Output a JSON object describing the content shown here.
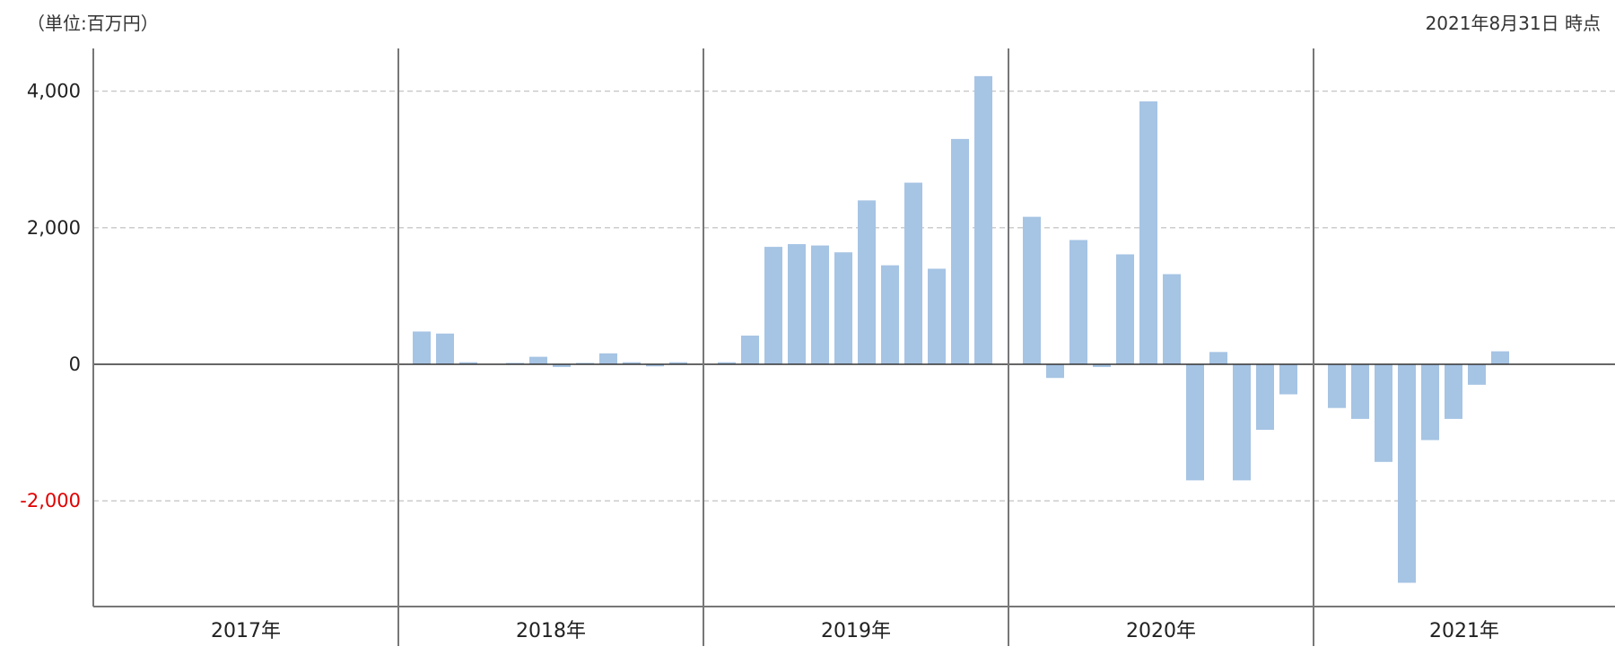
{
  "header": {
    "unit": "（単位:百万円）",
    "as_of": "2021年8月31日 時点"
  },
  "colors": {
    "bar": "#a6c4e4",
    "grid": "#c8c8c8",
    "axis": "#333333",
    "divider": "#777777",
    "negative_tick": "#e00000"
  },
  "chart_data": {
    "type": "bar",
    "title": "",
    "xlabel": "",
    "ylabel": "",
    "ylim": [
      -3550,
      4650
    ],
    "yticks": [
      {
        "value": 4000,
        "label": "4,000"
      },
      {
        "value": 2000,
        "label": "2,000"
      },
      {
        "value": 0,
        "label": "0"
      },
      {
        "value": -2000,
        "label": "-2,000"
      }
    ],
    "grid": true,
    "years": [
      {
        "label": "2017年",
        "values": [
          null,
          null,
          null,
          null,
          null,
          null,
          null,
          null,
          null,
          null,
          null,
          null
        ]
      },
      {
        "label": "2018年",
        "values": [
          480,
          450,
          30,
          null,
          20,
          110,
          -40,
          20,
          160,
          30,
          -30,
          30
        ]
      },
      {
        "label": "2019年",
        "values": [
          30,
          420,
          1720,
          1760,
          1740,
          1640,
          2400,
          1450,
          2660,
          1400,
          3300,
          4220
        ]
      },
      {
        "label": "2020年",
        "values": [
          2160,
          -200,
          1820,
          -40,
          1610,
          3850,
          1320,
          -1700,
          180,
          -1700,
          -960,
          -440
        ]
      },
      {
        "label": "2021年",
        "values": [
          -640,
          -800,
          -1430,
          -3200,
          -1110,
          -800,
          -300,
          190
        ]
      }
    ]
  }
}
